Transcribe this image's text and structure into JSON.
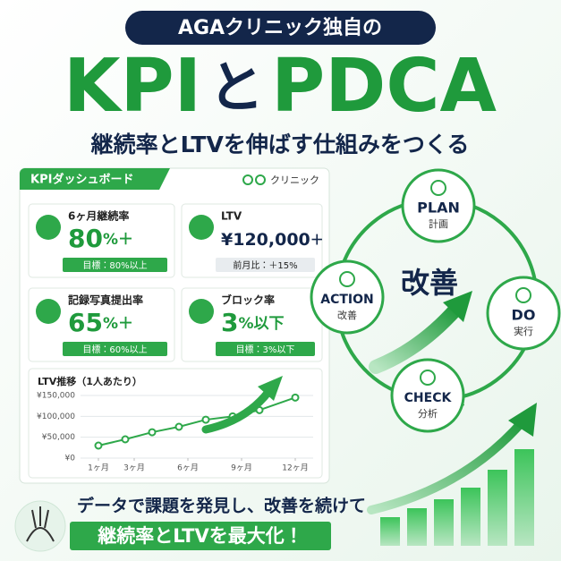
{
  "header": {
    "badge": "AGAクリニック独自の",
    "title_left": "KPI",
    "title_mid": "と",
    "title_right": "PDCA",
    "subtitle": "継続率とLTVを伸ばす仕組みをつくる"
  },
  "dashboard": {
    "title": "KPIダッシュボード",
    "brand": "クリニック",
    "cards": [
      {
        "label": "6ヶ月継続率",
        "value": "80",
        "unit": "%＋",
        "note": "目標：80%以上"
      },
      {
        "label": "LTV",
        "value": "¥120,000",
        "unit": "＋",
        "note": "前月比：＋15%"
      },
      {
        "label": "記録写真提出率",
        "value": "65",
        "unit": "%＋",
        "note": "目標：60%以上"
      },
      {
        "label": "ブロック率",
        "value": "3",
        "unit": "%以下",
        "note": "目標：3%以下"
      }
    ]
  },
  "chart_data": {
    "type": "line",
    "title": "LTV推移（1人あたり）",
    "color": "#2ea84a",
    "x": [
      1,
      2.5,
      4,
      5.5,
      7,
      8.5,
      10,
      12
    ],
    "values": [
      30000,
      45000,
      62000,
      75000,
      92000,
      100000,
      115000,
      145000
    ],
    "xlim": [
      0,
      13
    ],
    "xticks": [
      {
        "value": 1,
        "label": "1ヶ月"
      },
      {
        "value": 3,
        "label": "3ヶ月"
      },
      {
        "value": 6,
        "label": "6ヶ月"
      },
      {
        "value": 9,
        "label": "9ヶ月"
      },
      {
        "value": 12,
        "label": "12ヶ月"
      }
    ],
    "ylim": [
      0,
      150000
    ],
    "yticks": [
      {
        "value": 0,
        "label": "¥0"
      },
      {
        "value": 50000,
        "label": "¥50,000"
      },
      {
        "value": 100000,
        "label": "¥100,000"
      },
      {
        "value": 150000,
        "label": "¥150,000"
      }
    ],
    "grid": true
  },
  "cycle": {
    "center": "改善",
    "nodes": [
      {
        "title": "PLAN",
        "sub": "計画"
      },
      {
        "title": "DO",
        "sub": "実行"
      },
      {
        "title": "CHECK",
        "sub": "分析"
      },
      {
        "title": "ACTION",
        "sub": "改善"
      }
    ]
  },
  "footer": {
    "line1": "データで課題を発見し、改善を続けて",
    "line2": "継続率とLTVを最大化！"
  }
}
